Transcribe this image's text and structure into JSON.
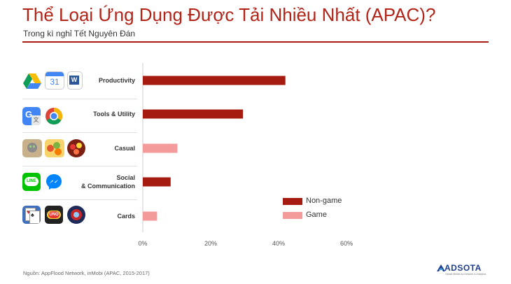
{
  "header": {
    "title": "Thể Loại Ứng Dụng Được Tải Nhiều Nhất (APAC)?",
    "subtitle": "Trong kì nghỉ Tết Nguyên Đán"
  },
  "footer": {
    "source": "Nguồn: AppFlood Network, inMobi (APAC, 2015-2017)",
    "logo_text": "ADSOTA",
    "logo_tagline": "Global Mobile Ad Network & Analytics"
  },
  "colors": {
    "title": "#b22318",
    "non_game": "#a51b10",
    "game": "#f39b9b"
  },
  "icons": {
    "productivity": [
      "google-drive-icon",
      "google-calendar-icon",
      "microsoft-word-icon"
    ],
    "tools": [
      "google-translate-icon",
      "chrome-icon"
    ],
    "casual": [
      "talking-tom-icon",
      "fruit-game-icon",
      "candy-crush-icon"
    ],
    "social": [
      "line-icon",
      "messenger-icon"
    ],
    "cards": [
      "solitaire-icon",
      "uno-icon",
      "card-battle-icon"
    ]
  },
  "calendar_icon_text": "31",
  "chart_data": {
    "type": "bar",
    "orientation": "horizontal",
    "categories": [
      "Productivity",
      "Tools & Utility",
      "Casual",
      "Social\n& Communication",
      "Cards"
    ],
    "category_kind": [
      "Non-game",
      "Non-game",
      "Game",
      "Non-game",
      "Game"
    ],
    "values": [
      42,
      29.5,
      10.2,
      8.2,
      4.2
    ],
    "unit": "%",
    "xlim": [
      0,
      60
    ],
    "xticks": [
      0,
      20,
      40,
      60
    ],
    "xtick_labels": [
      "0%",
      "20%",
      "40%",
      "60%"
    ],
    "grid": false,
    "legend": {
      "position": "bottom-right",
      "entries": [
        {
          "name": "Non-game",
          "color": "#a51b10"
        },
        {
          "name": "Game",
          "color": "#f39b9b"
        }
      ]
    }
  }
}
